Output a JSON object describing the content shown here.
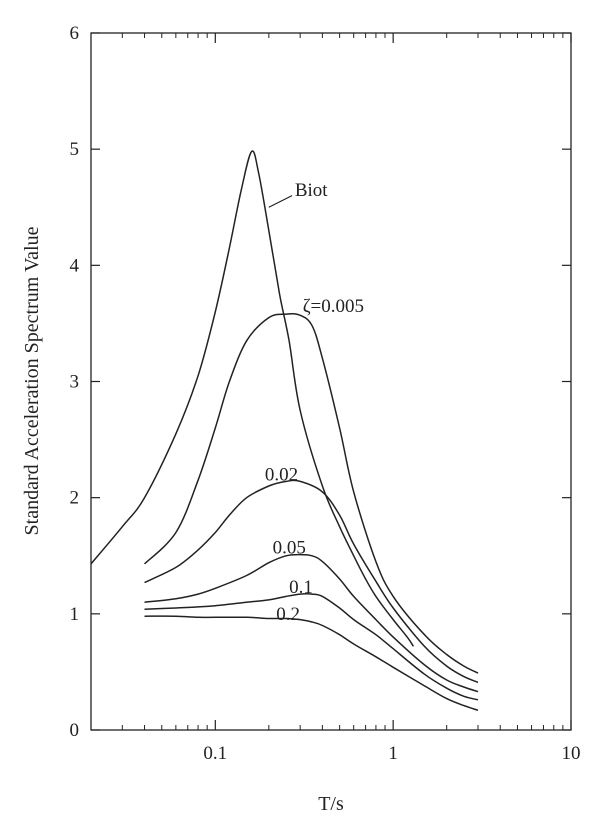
{
  "chart_data": {
    "type": "line",
    "xlabel": "T/s",
    "ylabel": "Standard Acceleration Spectrum Value",
    "x_scale": "log",
    "xlim": [
      0.02,
      10
    ],
    "ylim": [
      0,
      6
    ],
    "x_ticks": [
      {
        "value": 0.1,
        "label": "0.1"
      },
      {
        "value": 1,
        "label": "1"
      },
      {
        "value": 10,
        "label": "10"
      }
    ],
    "y_ticks": [
      {
        "value": 0,
        "label": "0"
      },
      {
        "value": 1,
        "label": "1"
      },
      {
        "value": 2,
        "label": "2"
      },
      {
        "value": 3,
        "label": "3"
      },
      {
        "value": 4,
        "label": "4"
      },
      {
        "value": 5,
        "label": "5"
      },
      {
        "value": 6,
        "label": "6"
      }
    ],
    "grid": false,
    "series": [
      {
        "name": "Biot",
        "points": [
          [
            0.02,
            1.43
          ],
          [
            0.03,
            1.75
          ],
          [
            0.04,
            2.0
          ],
          [
            0.06,
            2.55
          ],
          [
            0.08,
            3.05
          ],
          [
            0.1,
            3.6
          ],
          [
            0.12,
            4.15
          ],
          [
            0.14,
            4.65
          ],
          [
            0.16,
            4.98
          ],
          [
            0.175,
            4.8
          ],
          [
            0.2,
            4.3
          ],
          [
            0.23,
            3.75
          ],
          [
            0.26,
            3.35
          ],
          [
            0.3,
            2.75
          ],
          [
            0.4,
            2.1
          ],
          [
            0.5,
            1.75
          ],
          [
            0.6,
            1.5
          ],
          [
            0.7,
            1.3
          ],
          [
            0.8,
            1.15
          ],
          [
            1.0,
            0.95
          ],
          [
            1.2,
            0.8
          ],
          [
            1.3,
            0.72
          ]
        ]
      },
      {
        "name": "ζ=0.005",
        "points": [
          [
            0.04,
            1.43
          ],
          [
            0.06,
            1.7
          ],
          [
            0.08,
            2.15
          ],
          [
            0.1,
            2.6
          ],
          [
            0.12,
            3.0
          ],
          [
            0.15,
            3.35
          ],
          [
            0.2,
            3.55
          ],
          [
            0.25,
            3.58
          ],
          [
            0.3,
            3.57
          ],
          [
            0.35,
            3.48
          ],
          [
            0.4,
            3.2
          ],
          [
            0.5,
            2.6
          ],
          [
            0.6,
            2.05
          ],
          [
            0.8,
            1.45
          ],
          [
            1.0,
            1.15
          ],
          [
            1.5,
            0.82
          ],
          [
            2.0,
            0.65
          ],
          [
            2.5,
            0.55
          ],
          [
            3.0,
            0.49
          ]
        ]
      },
      {
        "name": "0.02",
        "points": [
          [
            0.04,
            1.27
          ],
          [
            0.06,
            1.4
          ],
          [
            0.08,
            1.55
          ],
          [
            0.1,
            1.7
          ],
          [
            0.12,
            1.85
          ],
          [
            0.15,
            2.0
          ],
          [
            0.2,
            2.1
          ],
          [
            0.25,
            2.14
          ],
          [
            0.3,
            2.14
          ],
          [
            0.4,
            2.05
          ],
          [
            0.5,
            1.85
          ],
          [
            0.6,
            1.6
          ],
          [
            0.8,
            1.28
          ],
          [
            1.0,
            1.05
          ],
          [
            1.5,
            0.72
          ],
          [
            2.0,
            0.55
          ],
          [
            2.5,
            0.46
          ],
          [
            3.0,
            0.41
          ]
        ]
      },
      {
        "name": "0.05",
        "points": [
          [
            0.04,
            1.1
          ],
          [
            0.06,
            1.13
          ],
          [
            0.08,
            1.17
          ],
          [
            0.1,
            1.22
          ],
          [
            0.15,
            1.33
          ],
          [
            0.2,
            1.44
          ],
          [
            0.25,
            1.5
          ],
          [
            0.3,
            1.51
          ],
          [
            0.35,
            1.5
          ],
          [
            0.4,
            1.45
          ],
          [
            0.5,
            1.3
          ],
          [
            0.6,
            1.15
          ],
          [
            0.8,
            0.95
          ],
          [
            1.0,
            0.8
          ],
          [
            1.5,
            0.56
          ],
          [
            2.0,
            0.43
          ],
          [
            2.5,
            0.37
          ],
          [
            3.0,
            0.33
          ]
        ]
      },
      {
        "name": "0.1",
        "points": [
          [
            0.04,
            1.04
          ],
          [
            0.06,
            1.05
          ],
          [
            0.08,
            1.06
          ],
          [
            0.1,
            1.07
          ],
          [
            0.15,
            1.1
          ],
          [
            0.2,
            1.12
          ],
          [
            0.25,
            1.15
          ],
          [
            0.3,
            1.17
          ],
          [
            0.35,
            1.17
          ],
          [
            0.4,
            1.15
          ],
          [
            0.5,
            1.05
          ],
          [
            0.6,
            0.95
          ],
          [
            0.8,
            0.82
          ],
          [
            1.0,
            0.7
          ],
          [
            1.5,
            0.48
          ],
          [
            2.0,
            0.36
          ],
          [
            2.5,
            0.29
          ],
          [
            3.0,
            0.26
          ]
        ]
      },
      {
        "name": "0.2",
        "points": [
          [
            0.04,
            0.98
          ],
          [
            0.06,
            0.98
          ],
          [
            0.08,
            0.97
          ],
          [
            0.1,
            0.97
          ],
          [
            0.15,
            0.97
          ],
          [
            0.2,
            0.96
          ],
          [
            0.25,
            0.96
          ],
          [
            0.3,
            0.95
          ],
          [
            0.35,
            0.93
          ],
          [
            0.4,
            0.9
          ],
          [
            0.5,
            0.82
          ],
          [
            0.6,
            0.74
          ],
          [
            0.8,
            0.63
          ],
          [
            1.0,
            0.54
          ],
          [
            1.5,
            0.38
          ],
          [
            2.0,
            0.27
          ],
          [
            2.5,
            0.21
          ],
          [
            3.0,
            0.17
          ]
        ]
      }
    ],
    "annotations": [
      {
        "text": "Biot",
        "x": 0.28,
        "y": 4.65,
        "leader_from": [
          0.27,
          4.6
        ],
        "leader_to": [
          0.2,
          4.5
        ]
      },
      {
        "text": "ζ=0.005",
        "x": 0.31,
        "y": 3.65
      },
      {
        "text": "0.02",
        "x": 0.19,
        "y": 2.2
      },
      {
        "text": "0.05",
        "x": 0.21,
        "y": 1.57
      },
      {
        "text": "0.1",
        "x": 0.26,
        "y": 1.23
      },
      {
        "text": "0.2",
        "x": 0.22,
        "y": 1.0
      }
    ]
  }
}
